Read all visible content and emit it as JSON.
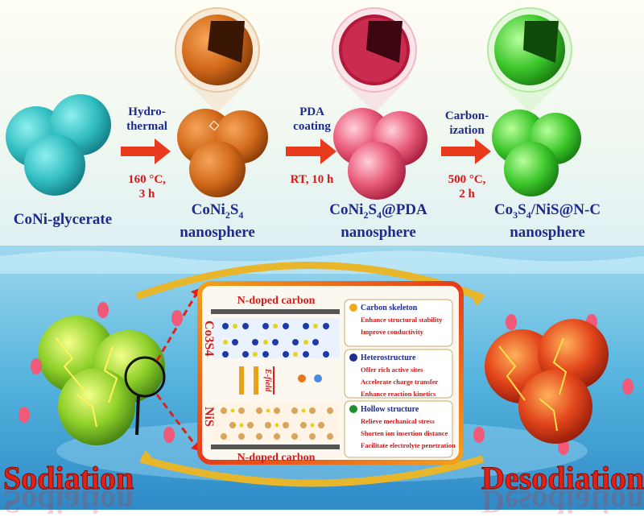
{
  "top": {
    "stages": [
      {
        "name": "CoNi-glycerate"
      },
      {
        "name_main": "CoNi",
        "sub1": "2",
        "mid": "S",
        "sub2": "4",
        "name_line2": "nanosphere"
      },
      {
        "name_main": "CoNi",
        "sub1": "2",
        "mid": "S",
        "sub2": "4",
        "tail": "@PDA",
        "name_line2": "nanosphere"
      },
      {
        "part1": "Co",
        "sub1": "3",
        "part2": "S",
        "sub2": "4",
        "part3": "/NiS@N-C",
        "name_line2": "nanosphere"
      }
    ],
    "steps": [
      {
        "line1": "Hydro-",
        "line2": "thermal",
        "cond1": "160 °C,",
        "cond2": "3 h"
      },
      {
        "line1": "PDA",
        "line2": "coating",
        "cond1": "RT, 10 h"
      },
      {
        "line1": "Carbon-",
        "line2": "ization",
        "cond1": "500 °C,",
        "cond2": "2 h"
      }
    ]
  },
  "bottom": {
    "left_word": "Sodiation",
    "right_word": "Desodiation",
    "ndoped_top": "N-doped carbon",
    "ndoped_bottom": "N-doped carbon",
    "co3s4_label": "Co3S4",
    "nis_label": "NiS",
    "efield": "E-field",
    "features": [
      {
        "title": "Carbon skeleton",
        "items": [
          "Enhance structural stability",
          "Improve conductivity"
        ],
        "color": "#f2a81d"
      },
      {
        "title": "Heterostructure",
        "items": [
          "Offer rich active sites",
          "Accelerate charge transfer",
          "Enhance reaction kinetics"
        ],
        "color": "#1d2f8f"
      },
      {
        "title": "Hollow structure",
        "items": [
          "Relieve mechanical stress",
          "Shorten ion insertion distance",
          "Facilitate electrolyte penetration"
        ],
        "color": "#1c8f2c"
      }
    ]
  },
  "colors": {
    "glycerate": "#3cc6c8",
    "coni2s4": "#d9701c",
    "pda": "#e25878",
    "final": "#3fcf2e",
    "arrow": "#e83a1c"
  }
}
